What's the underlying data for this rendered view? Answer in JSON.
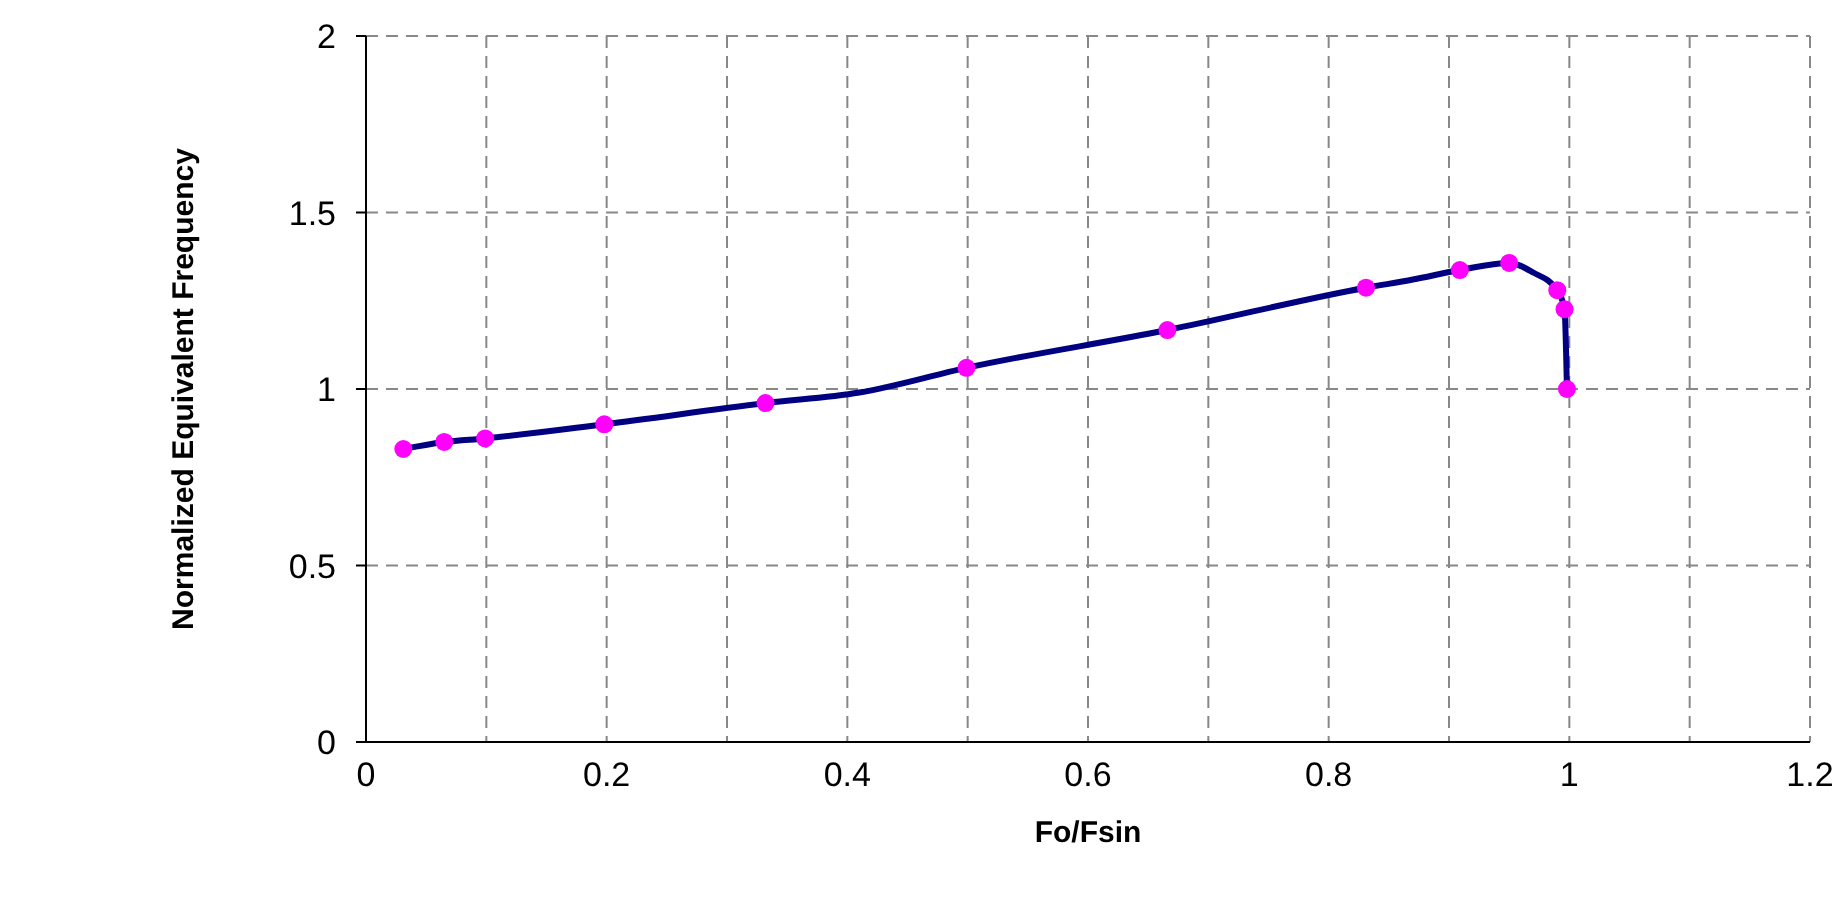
{
  "chart_data": {
    "type": "scatter",
    "xlabel": "Fo/Fsin",
    "ylabel": "Normalized Equivalent Frequency",
    "xlim": [
      0,
      1.2
    ],
    "xticks": [
      0,
      {
        "value": 0.1,
        "label": null
      },
      0.2,
      {
        "value": 0.3,
        "label": null
      },
      0.4,
      {
        "value": 0.5,
        "label": null
      },
      0.6,
      {
        "value": 0.7,
        "label": null
      },
      0.8,
      {
        "value": 0.9,
        "label": null
      },
      1,
      {
        "value": 1.1,
        "label": null
      },
      1.2
    ],
    "ylim": [
      0,
      2
    ],
    "yticks": [
      0,
      0.5,
      1,
      1.5,
      2
    ],
    "grid": true,
    "series": [
      {
        "type": "line",
        "color": "#000080",
        "x": [
          0.031,
          0.065,
          0.099,
          0.198,
          0.332,
          0.41,
          0.499,
          0.666,
          0.831,
          0.87,
          0.909,
          0.95,
          0.97,
          0.99,
          0.996,
          0.998
        ],
        "values": [
          0.83,
          0.85,
          0.86,
          0.9,
          0.96,
          0.99,
          1.06,
          1.167,
          1.287,
          1.31,
          1.337,
          1.357,
          1.33,
          1.28,
          1.226,
          1.0
        ]
      },
      {
        "marker": "circle",
        "color": "#ff00ff",
        "x": [
          0.031,
          0.065,
          0.099,
          0.198,
          0.332,
          0.499,
          0.666,
          0.831,
          0.909,
          0.95,
          0.99,
          0.996,
          0.998
        ],
        "values": [
          0.83,
          0.85,
          0.86,
          0.9,
          0.96,
          1.06,
          1.167,
          1.287,
          1.337,
          1.357,
          1.28,
          1.226,
          1.0
        ]
      }
    ]
  }
}
